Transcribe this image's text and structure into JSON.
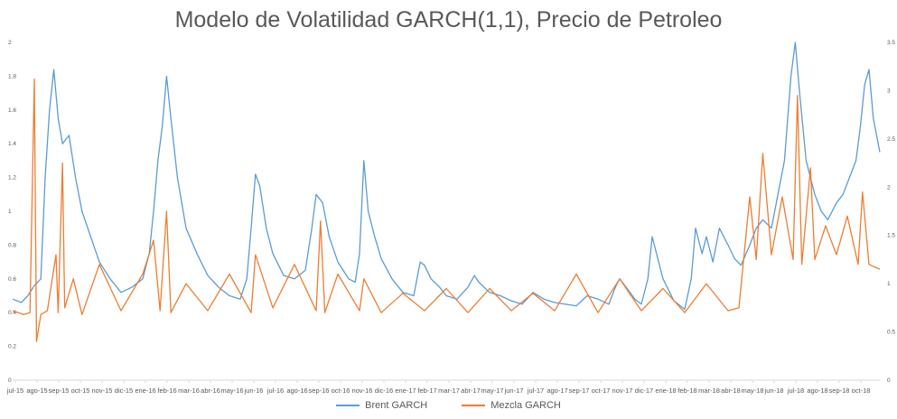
{
  "chart_data": {
    "type": "line",
    "title": "Modelo de Volatilidad GARCH(1,1), Precio de Petroleo",
    "x_tick_labels": [
      "jul-15",
      "ago-15",
      "sep-15",
      "oct-15",
      "nov-15",
      "dic-15",
      "ene-16",
      "feb-16",
      "mar-16",
      "abr-16",
      "may-16",
      "jun-16",
      "jul-16",
      "ago-16",
      "sep-16",
      "oct-16",
      "nov-16",
      "dic-16",
      "ene-17",
      "feb-17",
      "mar-17",
      "abr-17",
      "may-17",
      "jun-17",
      "jul-17",
      "ago-17",
      "sep-17",
      "oct-17",
      "nov-17",
      "dic-17",
      "ene-18",
      "feb-18",
      "mar-18",
      "abr-18",
      "may-18",
      "jun-18",
      "jul-18",
      "ago-18",
      "sep-18",
      "oct-18"
    ],
    "y_left": {
      "range": [
        0,
        2
      ],
      "ticks": [
        "0",
        "0.2",
        "0.4",
        "0.6",
        "0.8",
        "1",
        "1.2",
        "1.4",
        "1.6",
        "1.8",
        "2"
      ]
    },
    "y_right": {
      "range": [
        0,
        3.5
      ],
      "ticks": [
        "0",
        "0.5",
        "1",
        "1.5",
        "2",
        "2.5",
        "3",
        "3.5"
      ]
    },
    "grid": false,
    "legend_position": "bottom",
    "series": [
      {
        "name": "Brent GARCH",
        "axis": "left",
        "color": "#5B9BD5",
        "points": [
          [
            0,
            0.48
          ],
          [
            0.4,
            0.46
          ],
          [
            0.7,
            0.5
          ],
          [
            1.0,
            0.56
          ],
          [
            1.3,
            0.6
          ],
          [
            1.5,
            1.2
          ],
          [
            1.7,
            1.6
          ],
          [
            1.9,
            1.84
          ],
          [
            2.1,
            1.55
          ],
          [
            2.3,
            1.4
          ],
          [
            2.6,
            1.45
          ],
          [
            2.9,
            1.2
          ],
          [
            3.2,
            1.0
          ],
          [
            3.6,
            0.85
          ],
          [
            4.0,
            0.7
          ],
          [
            4.5,
            0.6
          ],
          [
            5.0,
            0.52
          ],
          [
            5.5,
            0.55
          ],
          [
            6.0,
            0.6
          ],
          [
            6.3,
            0.75
          ],
          [
            6.5,
            1.0
          ],
          [
            6.7,
            1.3
          ],
          [
            6.9,
            1.5
          ],
          [
            7.1,
            1.8
          ],
          [
            7.3,
            1.55
          ],
          [
            7.6,
            1.2
          ],
          [
            8.0,
            0.9
          ],
          [
            8.5,
            0.75
          ],
          [
            9.0,
            0.62
          ],
          [
            9.5,
            0.55
          ],
          [
            10.0,
            0.5
          ],
          [
            10.5,
            0.48
          ],
          [
            10.8,
            0.6
          ],
          [
            11.0,
            0.9
          ],
          [
            11.2,
            1.22
          ],
          [
            11.4,
            1.15
          ],
          [
            11.7,
            0.9
          ],
          [
            12.0,
            0.75
          ],
          [
            12.5,
            0.62
          ],
          [
            13.0,
            0.6
          ],
          [
            13.5,
            0.65
          ],
          [
            13.8,
            0.9
          ],
          [
            14.0,
            1.1
          ],
          [
            14.3,
            1.05
          ],
          [
            14.6,
            0.85
          ],
          [
            15.0,
            0.7
          ],
          [
            15.5,
            0.6
          ],
          [
            15.8,
            0.58
          ],
          [
            16.0,
            0.75
          ],
          [
            16.2,
            1.3
          ],
          [
            16.4,
            1.0
          ],
          [
            16.7,
            0.85
          ],
          [
            17.0,
            0.72
          ],
          [
            17.5,
            0.6
          ],
          [
            18.0,
            0.52
          ],
          [
            18.5,
            0.5
          ],
          [
            18.8,
            0.7
          ],
          [
            19.0,
            0.68
          ],
          [
            19.3,
            0.6
          ],
          [
            19.7,
            0.55
          ],
          [
            20.0,
            0.5
          ],
          [
            20.5,
            0.48
          ],
          [
            21.0,
            0.55
          ],
          [
            21.3,
            0.62
          ],
          [
            21.5,
            0.58
          ],
          [
            22.0,
            0.52
          ],
          [
            22.5,
            0.5
          ],
          [
            23.0,
            0.47
          ],
          [
            23.5,
            0.45
          ],
          [
            24.0,
            0.52
          ],
          [
            24.5,
            0.48
          ],
          [
            25.0,
            0.46
          ],
          [
            25.5,
            0.45
          ],
          [
            26.0,
            0.44
          ],
          [
            26.5,
            0.5
          ],
          [
            27.0,
            0.48
          ],
          [
            27.5,
            0.45
          ],
          [
            27.8,
            0.55
          ],
          [
            28.0,
            0.6
          ],
          [
            28.3,
            0.55
          ],
          [
            28.7,
            0.48
          ],
          [
            29.0,
            0.45
          ],
          [
            29.3,
            0.6
          ],
          [
            29.5,
            0.85
          ],
          [
            29.7,
            0.75
          ],
          [
            30.0,
            0.6
          ],
          [
            30.5,
            0.47
          ],
          [
            31.0,
            0.42
          ],
          [
            31.3,
            0.6
          ],
          [
            31.5,
            0.9
          ],
          [
            31.8,
            0.75
          ],
          [
            32.0,
            0.85
          ],
          [
            32.3,
            0.7
          ],
          [
            32.6,
            0.9
          ],
          [
            33.0,
            0.8
          ],
          [
            33.3,
            0.72
          ],
          [
            33.6,
            0.68
          ],
          [
            34.0,
            0.8
          ],
          [
            34.3,
            0.9
          ],
          [
            34.6,
            0.95
          ],
          [
            35.0,
            0.9
          ],
          [
            35.3,
            1.1
          ],
          [
            35.6,
            1.3
          ],
          [
            35.9,
            1.8
          ],
          [
            36.1,
            2.0
          ],
          [
            36.3,
            1.7
          ],
          [
            36.6,
            1.3
          ],
          [
            37.0,
            1.1
          ],
          [
            37.3,
            1.0
          ],
          [
            37.6,
            0.95
          ],
          [
            38.0,
            1.05
          ],
          [
            38.3,
            1.1
          ],
          [
            38.6,
            1.2
          ],
          [
            38.9,
            1.3
          ],
          [
            39.1,
            1.5
          ],
          [
            39.3,
            1.75
          ],
          [
            39.5,
            1.84
          ],
          [
            39.7,
            1.55
          ],
          [
            40.0,
            1.35
          ]
        ]
      },
      {
        "name": "Mezcla GARCH",
        "axis": "right",
        "color": "#ED7D31",
        "points": [
          [
            0,
            0.72
          ],
          [
            0.5,
            0.68
          ],
          [
            0.8,
            0.7
          ],
          [
            1.0,
            3.12
          ],
          [
            1.1,
            0.4
          ],
          [
            1.3,
            0.68
          ],
          [
            1.6,
            0.72
          ],
          [
            2.0,
            1.3
          ],
          [
            2.1,
            0.7
          ],
          [
            2.3,
            2.25
          ],
          [
            2.4,
            0.75
          ],
          [
            2.8,
            1.05
          ],
          [
            3.2,
            0.68
          ],
          [
            4.0,
            1.2
          ],
          [
            5.0,
            0.72
          ],
          [
            6.0,
            1.1
          ],
          [
            6.5,
            1.45
          ],
          [
            6.8,
            0.72
          ],
          [
            7.1,
            1.75
          ],
          [
            7.3,
            0.7
          ],
          [
            8.0,
            1.0
          ],
          [
            9.0,
            0.72
          ],
          [
            10.0,
            1.1
          ],
          [
            11.0,
            0.7
          ],
          [
            11.2,
            1.3
          ],
          [
            12.0,
            0.75
          ],
          [
            13.0,
            1.2
          ],
          [
            14.0,
            0.72
          ],
          [
            14.2,
            1.65
          ],
          [
            14.4,
            0.7
          ],
          [
            15.0,
            1.1
          ],
          [
            16.0,
            0.72
          ],
          [
            16.2,
            1.05
          ],
          [
            17.0,
            0.7
          ],
          [
            18.0,
            0.9
          ],
          [
            19.0,
            0.72
          ],
          [
            20.0,
            0.95
          ],
          [
            21.0,
            0.7
          ],
          [
            22.0,
            0.95
          ],
          [
            23.0,
            0.72
          ],
          [
            24.0,
            0.9
          ],
          [
            25.0,
            0.72
          ],
          [
            26.0,
            1.1
          ],
          [
            27.0,
            0.7
          ],
          [
            28.0,
            1.05
          ],
          [
            29.0,
            0.72
          ],
          [
            30.0,
            0.95
          ],
          [
            31.0,
            0.7
          ],
          [
            32.0,
            1.0
          ],
          [
            33.0,
            0.72
          ],
          [
            33.5,
            0.75
          ],
          [
            34.0,
            1.9
          ],
          [
            34.3,
            1.25
          ],
          [
            34.6,
            2.35
          ],
          [
            35.0,
            1.3
          ],
          [
            35.5,
            1.9
          ],
          [
            36.0,
            1.25
          ],
          [
            36.2,
            2.95
          ],
          [
            36.4,
            1.2
          ],
          [
            36.8,
            2.2
          ],
          [
            37.0,
            1.25
          ],
          [
            37.5,
            1.6
          ],
          [
            38.0,
            1.3
          ],
          [
            38.5,
            1.7
          ],
          [
            39.0,
            1.2
          ],
          [
            39.2,
            1.95
          ],
          [
            39.5,
            1.2
          ],
          [
            40.0,
            1.15
          ]
        ]
      }
    ]
  },
  "legend": {
    "brent_label": "Brent GARCH",
    "mezcla_label": "Mezcla GARCH"
  }
}
